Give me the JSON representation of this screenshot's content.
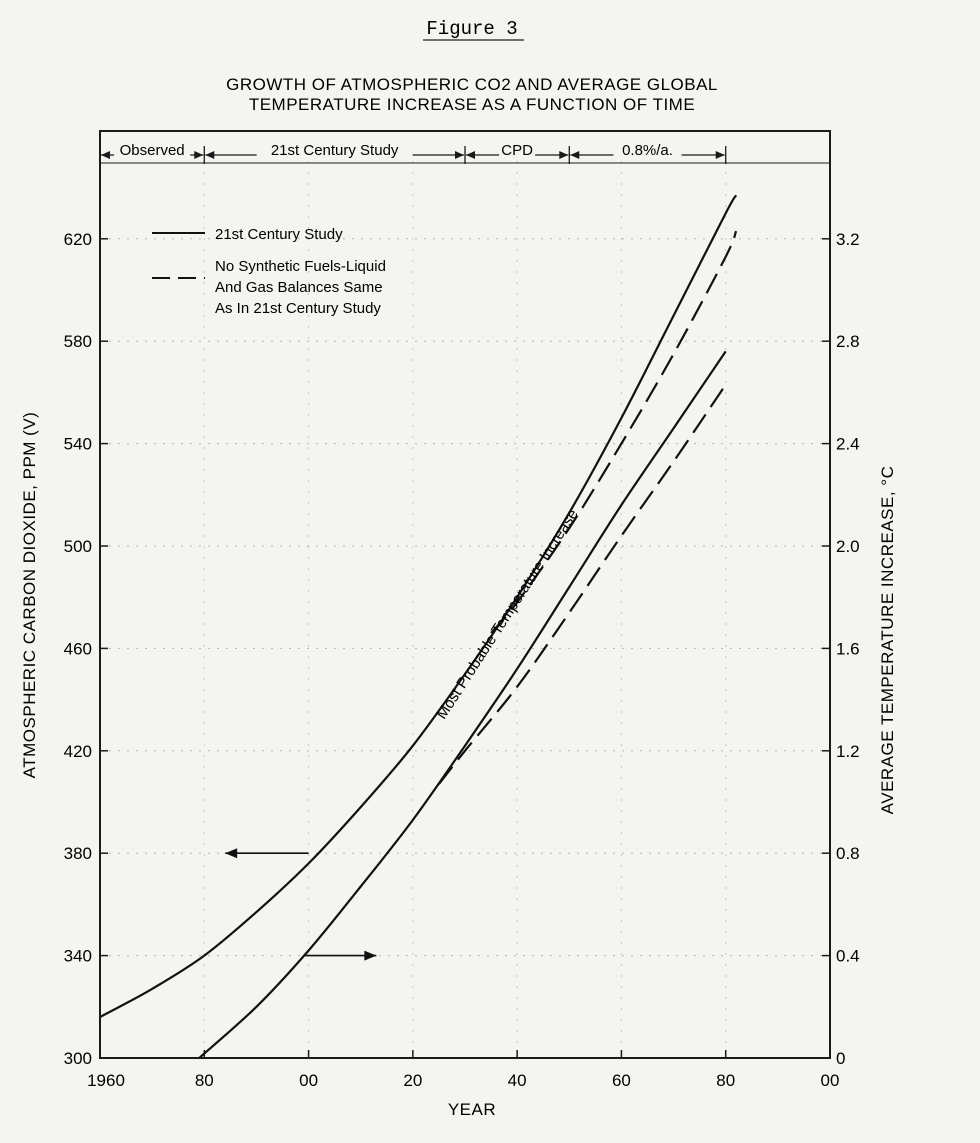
{
  "figure_label": "Figure 3",
  "chart_data": {
    "type": "line",
    "title": "GROWTH OF ATMOSPHERIC CO2 AND AVERAGE GLOBAL TEMPERATURE INCREASE AS A FUNCTION OF TIME",
    "title_lines": [
      "GROWTH OF ATMOSPHERIC CO2 AND AVERAGE GLOBAL",
      "TEMPERATURE INCREASE AS A FUNCTION OF TIME"
    ],
    "xlabel": "YEAR",
    "ylabel_left": "ATMOSPHERIC CARBON DIOXIDE, PPM (V)",
    "ylabel_right": "AVERAGE TEMPERATURE INCREASE, °C",
    "xlim": [
      1960,
      2100
    ],
    "ylim_left": [
      300,
      660
    ],
    "ylim_right": [
      0,
      3.6
    ],
    "x_ticks": [
      {
        "value": 1960,
        "label": "1960"
      },
      {
        "value": 1980,
        "label": "80"
      },
      {
        "value": 2000,
        "label": "00"
      },
      {
        "value": 2020,
        "label": "20"
      },
      {
        "value": 2040,
        "label": "40"
      },
      {
        "value": 2060,
        "label": "60"
      },
      {
        "value": 2080,
        "label": "80"
      },
      {
        "value": 2100,
        "label": "00"
      }
    ],
    "y_ticks_left": [
      {
        "value": 300,
        "label": "300"
      },
      {
        "value": 340,
        "label": "340"
      },
      {
        "value": 380,
        "label": "380"
      },
      {
        "value": 420,
        "label": "420"
      },
      {
        "value": 460,
        "label": "460"
      },
      {
        "value": 500,
        "label": "500"
      },
      {
        "value": 540,
        "label": "540"
      },
      {
        "value": 580,
        "label": "580"
      },
      {
        "value": 620,
        "label": "620"
      }
    ],
    "y_ticks_right": [
      {
        "value": 0,
        "label": "0"
      },
      {
        "value": 0.4,
        "label": "0.4"
      },
      {
        "value": 0.8,
        "label": "0.8"
      },
      {
        "value": 1.2,
        "label": "1.2"
      },
      {
        "value": 1.6,
        "label": "1.6"
      },
      {
        "value": 2.0,
        "label": "2.0"
      },
      {
        "value": 2.4,
        "label": "2.4"
      },
      {
        "value": 2.8,
        "label": "2.8"
      },
      {
        "value": 3.2,
        "label": "3.2"
      }
    ],
    "phases": [
      {
        "label": "Observed",
        "start": 1960,
        "end": 1980
      },
      {
        "label": "21st Century Study",
        "start": 1980,
        "end": 2030
      },
      {
        "label": "CPD",
        "start": 2030,
        "end": 2050
      },
      {
        "label": "0.8%/a.",
        "start": 2050,
        "end": 2080
      }
    ],
    "legend": [
      {
        "label_lines": [
          "21st Century Study"
        ],
        "style": "solid"
      },
      {
        "label_lines": [
          "No Synthetic Fuels-Liquid",
          "And Gas Balances Same",
          "As In 21st Century Study"
        ],
        "style": "dashed"
      }
    ],
    "series": [
      {
        "name": "CO2 - 21st Century Study",
        "axis": "left",
        "style": "solid",
        "x": [
          1960,
          1970,
          1980,
          1990,
          2000,
          2010,
          2020,
          2030,
          2040,
          2050,
          2060,
          2070,
          2080,
          2082
        ],
        "y": [
          316,
          327,
          340,
          357,
          376,
          398,
          422,
          450,
          480,
          513,
          550,
          590,
          630,
          637
        ]
      },
      {
        "name": "CO2 - No Synthetic Fuels",
        "axis": "left",
        "style": "dashed",
        "x": [
          2035,
          2040,
          2050,
          2060,
          2070,
          2080,
          2082
        ],
        "y": [
          466,
          478,
          507,
          540,
          575,
          613,
          623
        ]
      },
      {
        "name": "Temperature - 21st Century Study",
        "axis": "right",
        "style": "solid",
        "x": [
          1979,
          1990,
          2000,
          2010,
          2020,
          2030,
          2040,
          2050,
          2060,
          2070,
          2080
        ],
        "y": [
          0.0,
          0.2,
          0.42,
          0.67,
          0.93,
          1.22,
          1.52,
          1.84,
          2.16,
          2.46,
          2.76
        ]
      },
      {
        "name": "Temperature - No Synthetic Fuels",
        "axis": "right",
        "style": "dashed",
        "x": [
          2025,
          2030,
          2040,
          2050,
          2060,
          2070,
          2080
        ],
        "y": [
          1.07,
          1.2,
          1.45,
          1.74,
          2.04,
          2.33,
          2.63
        ]
      }
    ],
    "annotations": [
      {
        "text": "Most Probable Temperature Increase"
      }
    ],
    "axis_arrows": [
      {
        "points_to": "left",
        "from_year": 2000,
        "to_year": 1984,
        "value": 380
      },
      {
        "points_to": "right",
        "from_year": 1999,
        "to_year": 2013,
        "value": 340
      }
    ]
  }
}
